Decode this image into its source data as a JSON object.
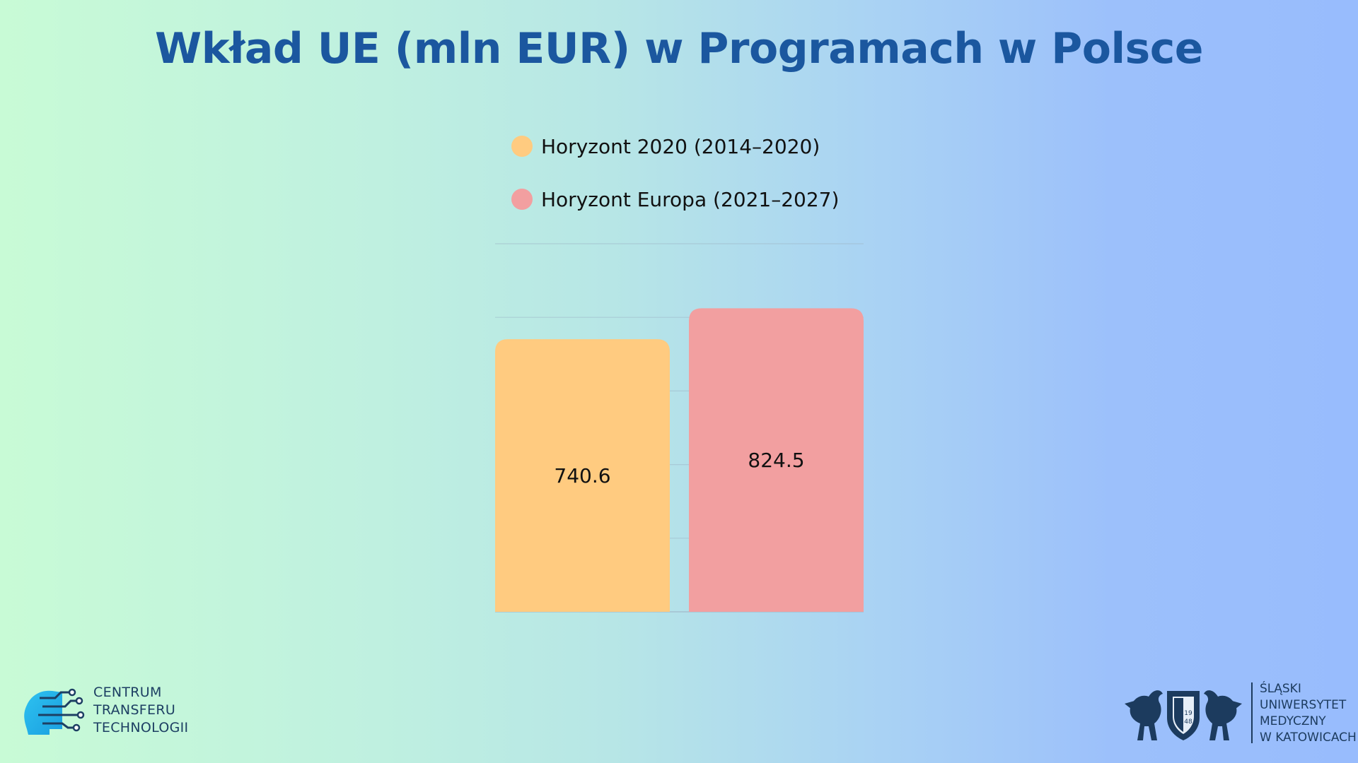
{
  "chart_data": {
    "type": "bar",
    "title": "Wkład UE (mln EUR) w Programach w Polsce",
    "categories": [
      "Horyzont 2020 (2014–2020)",
      "Horyzont Europa (2021–2027)"
    ],
    "values": [
      740.6,
      824.5
    ],
    "colors": [
      "#ffcb80",
      "#f29fa0"
    ],
    "data_labels": [
      "740.6",
      "824.5"
    ],
    "ylim": [
      0,
      1000
    ],
    "grid": true,
    "legend_position": "top"
  },
  "logos": {
    "left": {
      "lines": [
        "CENTRUM",
        "TRANSFERU",
        "TECHNOLOGII"
      ]
    },
    "right": {
      "lines": [
        "ŚLĄSKI",
        "UNIWERSYTET",
        "MEDYCZNY",
        "W KATOWICACH"
      ],
      "seal_text": "19 48"
    }
  }
}
